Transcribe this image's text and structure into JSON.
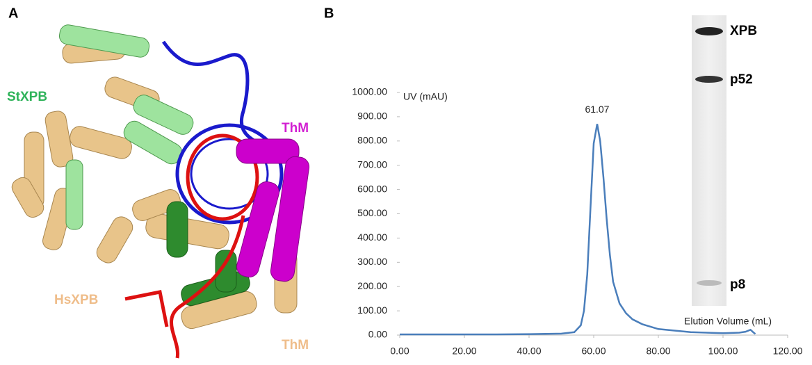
{
  "panels": {
    "a": "A",
    "b": "B"
  },
  "structure": {
    "labels": [
      {
        "text": "StXPB",
        "color": "#2fb35a"
      },
      {
        "text": "ThM",
        "color": "#d21fd2"
      },
      {
        "text": "HsXPB",
        "color": "#efbd8a"
      },
      {
        "text": "ThM",
        "color": "#efbd8a"
      }
    ]
  },
  "gel": {
    "bands": [
      "XPB",
      "p52",
      "p8"
    ]
  },
  "chart_data": {
    "type": "line",
    "x_label": "Elution Volume (mL)",
    "y_label": "UV (mAU)",
    "annotation": {
      "text": "61.07",
      "x": 61.07
    },
    "xlim": [
      0,
      120
    ],
    "ylim": [
      0,
      1000
    ],
    "xticks": [
      {
        "value": 0,
        "label": "0.00"
      },
      {
        "value": 20,
        "label": "20.00"
      },
      {
        "value": 40,
        "label": "40.00"
      },
      {
        "value": 60,
        "label": "60.00"
      },
      {
        "value": 80,
        "label": "80.00"
      },
      {
        "value": 100,
        "label": "100.00"
      },
      {
        "value": 120,
        "label": "120.00"
      }
    ],
    "yticks": [
      {
        "value": 0,
        "label": "0.00"
      },
      {
        "value": 100,
        "label": "100.00"
      },
      {
        "value": 200,
        "label": "200.00"
      },
      {
        "value": 300,
        "label": "300.00"
      },
      {
        "value": 400,
        "label": "400.00"
      },
      {
        "value": 500,
        "label": "500.00"
      },
      {
        "value": 600,
        "label": "600.00"
      },
      {
        "value": 700,
        "label": "700.00"
      },
      {
        "value": 800,
        "label": "800.00"
      },
      {
        "value": 900,
        "label": "900.00"
      },
      {
        "value": 1000,
        "label": "1000.00"
      }
    ],
    "series": [
      {
        "color": "#4a7ebb",
        "x": [
          0,
          10,
          20,
          30,
          40,
          50,
          54,
          56,
          57,
          58,
          59,
          60,
          61.07,
          62,
          63,
          64,
          65,
          66,
          68,
          70,
          72,
          75,
          80,
          90,
          100,
          105,
          107,
          108.5,
          109.5,
          110
        ],
        "values": [
          3,
          3,
          3,
          3,
          4,
          6,
          12,
          40,
          100,
          250,
          520,
          790,
          870,
          800,
          650,
          480,
          330,
          220,
          130,
          90,
          65,
          45,
          25,
          12,
          8,
          10,
          14,
          22,
          10,
          5
        ]
      }
    ]
  }
}
